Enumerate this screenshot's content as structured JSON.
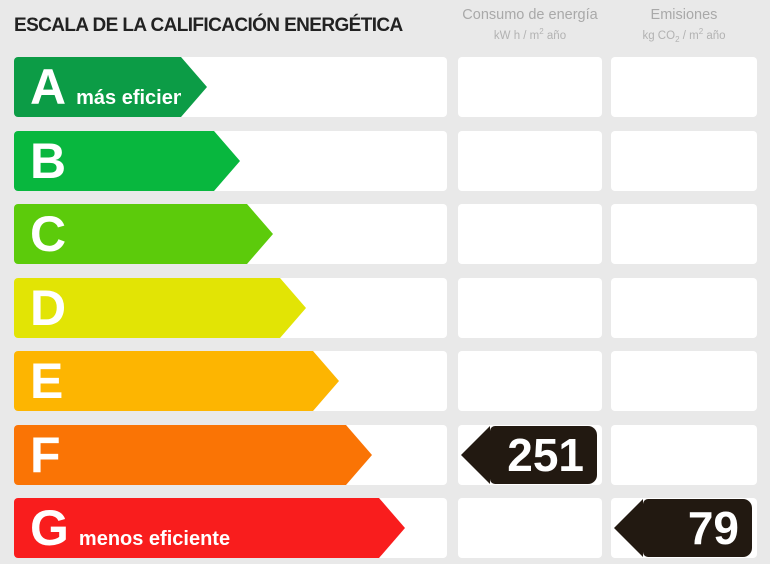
{
  "page": {
    "background": "#e9e9e9",
    "value_tag_color": "#221911"
  },
  "header": {
    "title": "ESCALA DE LA CALIFICACIÓN ENERGÉTICA",
    "consumption_column": {
      "title": "Consumo de energía",
      "units_prefix": "kW h / m",
      "units_sup": "2",
      "units_suffix": " año"
    },
    "emissions_column": {
      "title": "Emisiones",
      "units_prefix": "kg CO",
      "units_sub": "2",
      "units_mid": " / m",
      "units_sup": "2",
      "units_suffix": " año"
    }
  },
  "scale": {
    "ratings": [
      {
        "letter": "A",
        "label": "más eficiente",
        "color": "#0c9c46",
        "arrow_width": 193
      },
      {
        "letter": "B",
        "label": "",
        "color": "#08b73e",
        "arrow_width": 226
      },
      {
        "letter": "C",
        "label": "",
        "color": "#5ccb0b",
        "arrow_width": 259
      },
      {
        "letter": "D",
        "label": "",
        "color": "#e2e405",
        "arrow_width": 292
      },
      {
        "letter": "E",
        "label": "",
        "color": "#fdb501",
        "arrow_width": 325
      },
      {
        "letter": "F",
        "label": "",
        "color": "#fa7405",
        "arrow_width": 358,
        "consumption_value": "251"
      },
      {
        "letter": "G",
        "label": "menos eficiente",
        "color": "#f91d1d",
        "arrow_width": 391,
        "emissions_value": "79"
      }
    ]
  },
  "chart_data": {
    "type": "bar",
    "orientation": "horizontal",
    "title": "ESCALA DE LA CALIFICACIÓN ENERGÉTICA",
    "categories": [
      "A",
      "B",
      "C",
      "D",
      "E",
      "F",
      "G"
    ],
    "series": [
      {
        "name": "Consumo de energía (kW h / m2 año)",
        "values": [
          null,
          null,
          null,
          null,
          null,
          251,
          null
        ]
      },
      {
        "name": "Emisiones (kg CO2 / m2 año)",
        "values": [
          null,
          null,
          null,
          null,
          null,
          null,
          79
        ]
      }
    ],
    "annotations": [
      {
        "category": "A",
        "text": "más eficiente"
      },
      {
        "category": "G",
        "text": "menos eficiente"
      }
    ],
    "bar_colors": [
      "#0c9c46",
      "#08b73e",
      "#5ccb0b",
      "#e2e405",
      "#fdb501",
      "#fa7405",
      "#f91d1d"
    ],
    "legend_position": "top",
    "grid": false
  }
}
